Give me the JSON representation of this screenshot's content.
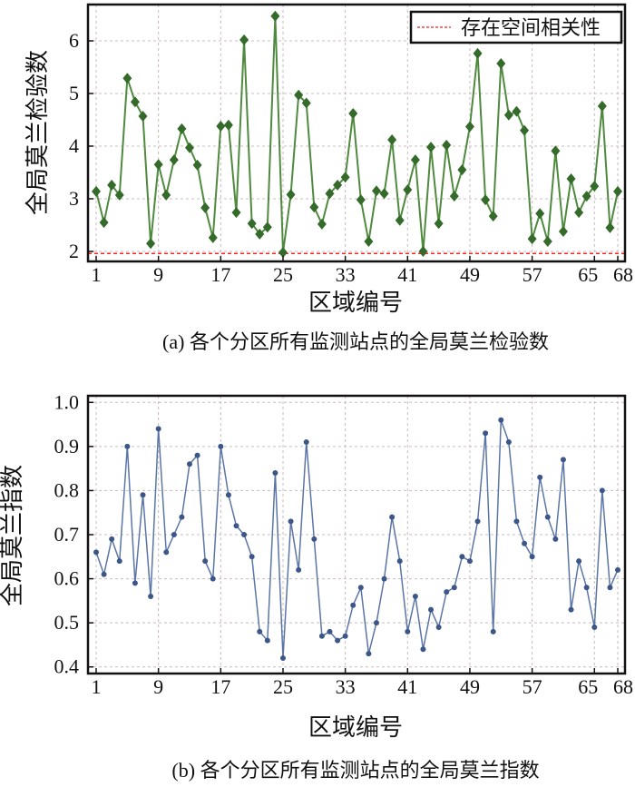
{
  "chart_data": [
    {
      "type": "line",
      "title": "(a) 各个分区所有监测站点的全局莫兰检验数",
      "xlabel": "区域编号",
      "ylabel": "全局莫兰检验数",
      "xlim": [
        -0.05,
        68.93
      ],
      "ylim": [
        1.81,
        6.69
      ],
      "xticks": [
        1,
        9,
        17,
        25,
        33,
        41,
        49,
        57,
        65,
        68
      ],
      "yticks": [
        2,
        3,
        4,
        5,
        6
      ],
      "grid": true,
      "legend": {
        "position": "top-right",
        "entries": [
          "存在空间相关性"
        ]
      },
      "threshold": 1.96,
      "line_color": "#4f8a3f",
      "marker_color": "#356b2a",
      "threshold_color": "#ff2020",
      "x": [
        1,
        2,
        3,
        4,
        5,
        6,
        7,
        8,
        9,
        10,
        11,
        12,
        13,
        14,
        15,
        16,
        17,
        18,
        19,
        20,
        21,
        22,
        23,
        24,
        25,
        26,
        27,
        28,
        29,
        30,
        31,
        32,
        33,
        34,
        35,
        36,
        37,
        38,
        39,
        40,
        41,
        42,
        43,
        44,
        45,
        46,
        47,
        48,
        49,
        50,
        51,
        52,
        53,
        54,
        55,
        56,
        57,
        58,
        59,
        60,
        61,
        62,
        63,
        64,
        65,
        66,
        67,
        68
      ],
      "values": [
        3.14,
        2.55,
        3.26,
        3.07,
        5.29,
        4.84,
        4.57,
        2.15,
        3.65,
        3.07,
        3.74,
        4.33,
        3.97,
        3.64,
        2.83,
        2.26,
        4.38,
        4.4,
        2.74,
        6.02,
        2.53,
        2.33,
        2.46,
        6.47,
        1.98,
        3.08,
        4.97,
        4.82,
        2.84,
        2.52,
        3.1,
        3.26,
        3.41,
        4.62,
        2.98,
        2.19,
        3.15,
        3.1,
        4.12,
        2.59,
        3.17,
        3.74,
        2.0,
        3.98,
        2.53,
        4.02,
        3.05,
        3.55,
        4.37,
        5.76,
        2.98,
        2.67,
        5.57,
        4.59,
        4.66,
        4.3,
        2.24,
        2.72,
        2.19,
        3.91,
        2.38,
        3.38,
        2.74,
        3.05,
        3.24,
        4.76,
        2.45,
        3.14
      ]
    },
    {
      "type": "line",
      "title": "(b) 各个分区所有监测站点的全局莫兰指数",
      "xlabel": "区域编号",
      "ylabel": "全局莫兰指数",
      "xlim": [
        -0.05,
        68.93
      ],
      "ylim": [
        0.385,
        1.015
      ],
      "xticks": [
        1,
        9,
        17,
        25,
        33,
        41,
        49,
        57,
        65,
        68
      ],
      "yticks": [
        0.4,
        0.5,
        0.6,
        0.7,
        0.8,
        0.9,
        1.0
      ],
      "ytick_labels": [
        "0.4",
        "0.5",
        "0.6",
        "0.7",
        "0.8",
        "0.9",
        "1.0"
      ],
      "grid": true,
      "line_color": "#5b76a6",
      "marker_color": "#3d5688",
      "x": [
        1,
        2,
        3,
        4,
        5,
        6,
        7,
        8,
        9,
        10,
        11,
        12,
        13,
        14,
        15,
        16,
        17,
        18,
        19,
        20,
        21,
        22,
        23,
        24,
        25,
        26,
        27,
        28,
        29,
        30,
        31,
        32,
        33,
        34,
        35,
        36,
        37,
        38,
        39,
        40,
        41,
        42,
        43,
        44,
        45,
        46,
        47,
        48,
        49,
        50,
        51,
        52,
        53,
        54,
        55,
        56,
        57,
        58,
        59,
        60,
        61,
        62,
        63,
        64,
        65,
        66,
        67,
        68
      ],
      "values": [
        0.66,
        0.61,
        0.69,
        0.64,
        0.9,
        0.59,
        0.79,
        0.56,
        0.94,
        0.66,
        0.7,
        0.74,
        0.86,
        0.88,
        0.64,
        0.6,
        0.9,
        0.79,
        0.72,
        0.7,
        0.65,
        0.48,
        0.46,
        0.84,
        0.42,
        0.73,
        0.62,
        0.91,
        0.69,
        0.47,
        0.48,
        0.46,
        0.47,
        0.54,
        0.58,
        0.43,
        0.5,
        0.6,
        0.74,
        0.64,
        0.48,
        0.56,
        0.44,
        0.53,
        0.49,
        0.57,
        0.58,
        0.65,
        0.64,
        0.73,
        0.93,
        0.48,
        0.96,
        0.91,
        0.73,
        0.68,
        0.65,
        0.83,
        0.74,
        0.69,
        0.87,
        0.53,
        0.64,
        0.58,
        0.49,
        0.8,
        0.58,
        0.62
      ]
    }
  ]
}
